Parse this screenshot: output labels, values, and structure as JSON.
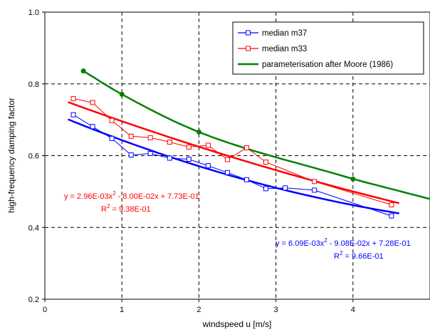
{
  "chart_data": {
    "type": "line",
    "title": "",
    "xlabel": "windspeed u [m/s]",
    "ylabel": "high-frequency damping factor",
    "xlim": [
      0,
      5
    ],
    "ylim": [
      0.2,
      1.0
    ],
    "x_ticks": [
      0,
      1,
      2,
      3,
      4
    ],
    "y_ticks": [
      0.2,
      0.4,
      0.6,
      0.8,
      1.0
    ],
    "x_tick_labels": [
      "0",
      "1",
      "2",
      "3",
      "4"
    ],
    "y_tick_labels": [
      "0.2",
      "0.4",
      "0.6",
      "0.8",
      "1.0"
    ],
    "grid": true,
    "legend_position": "top-right",
    "series": [
      {
        "name": "median m37",
        "color": "#0000ff",
        "marker": "square",
        "x": [
          0.37,
          0.62,
          0.87,
          1.12,
          1.37,
          1.62,
          1.87,
          2.12,
          2.37,
          2.62,
          2.87,
          3.12,
          3.5,
          4.5
        ],
        "y": [
          0.714,
          0.681,
          0.648,
          0.602,
          0.606,
          0.593,
          0.59,
          0.572,
          0.553,
          0.533,
          0.508,
          0.51,
          0.504,
          0.432
        ]
      },
      {
        "name": "median m33",
        "color": "#ff0000",
        "marker": "square",
        "x": [
          0.37,
          0.62,
          0.87,
          1.12,
          1.37,
          1.62,
          1.87,
          2.12,
          2.37,
          2.62,
          2.87,
          3.5,
          4.5
        ],
        "y": [
          0.759,
          0.748,
          0.698,
          0.654,
          0.65,
          0.638,
          0.624,
          0.629,
          0.589,
          0.622,
          0.582,
          0.528,
          0.463
        ]
      },
      {
        "name": "parameterisation after Moore (1986)",
        "color": "#008000",
        "marker": "circle",
        "x": [
          0.5,
          1,
          2,
          4
        ],
        "y": [
          0.836,
          0.771,
          0.666,
          0.535
        ]
      }
    ],
    "trendlines": [
      {
        "color": "#0000ff",
        "a": 0.00609,
        "b": -0.0908,
        "c": 0.728,
        "x_range": [
          0.3,
          4.6
        ],
        "equation": "y = 6.09E-03x",
        "equation_sup": "2",
        "equation_rest": " - 9.08E-02x + 7.28E-01",
        "r2_label": "R",
        "r2_sup": "2",
        "r2_rest": " = 9.66E-01"
      },
      {
        "color": "#ff0000",
        "a": 0.00296,
        "b": -0.08,
        "c": 0.773,
        "x_range": [
          0.3,
          4.6
        ],
        "equation": "y = 2.96E-03x",
        "equation_sup": "2",
        "equation_rest": " - 8.00E-02x + 7.73E-01",
        "r2_label": "R",
        "r2_sup": "2",
        "r2_rest": " = 9.38E-01"
      }
    ],
    "moore_curve_color": "#008000"
  }
}
